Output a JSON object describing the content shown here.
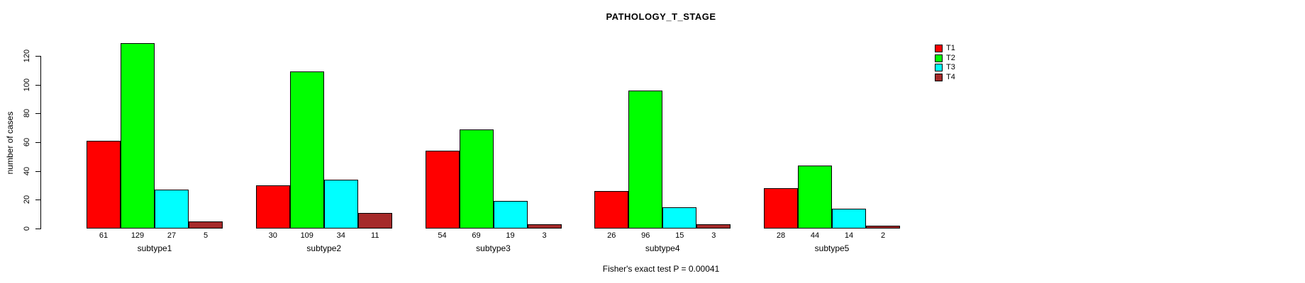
{
  "chart_data": {
    "type": "bar",
    "title": "PATHOLOGY_T_STAGE",
    "ylabel": "number of cases",
    "xlabel": "",
    "categories": [
      "subtype1",
      "subtype2",
      "subtype3",
      "subtype4",
      "subtype5"
    ],
    "series": [
      {
        "name": "T1",
        "color": "#FF0000",
        "values": [
          61,
          30,
          54,
          26,
          28
        ]
      },
      {
        "name": "T2",
        "color": "#00FF00",
        "values": [
          129,
          109,
          69,
          96,
          44
        ]
      },
      {
        "name": "T3",
        "color": "#00FFFF",
        "values": [
          27,
          34,
          19,
          15,
          14
        ]
      },
      {
        "name": "T4",
        "color": "#A52A2A",
        "values": [
          5,
          11,
          3,
          3,
          2
        ]
      }
    ],
    "yticks": [
      0,
      20,
      40,
      60,
      80,
      100,
      120
    ],
    "ylim": [
      0,
      130
    ],
    "grid": false,
    "legend_position": "top-right",
    "bar_value_labels_shown": true,
    "footnote": "Fisher's exact test P = 0.00041"
  }
}
